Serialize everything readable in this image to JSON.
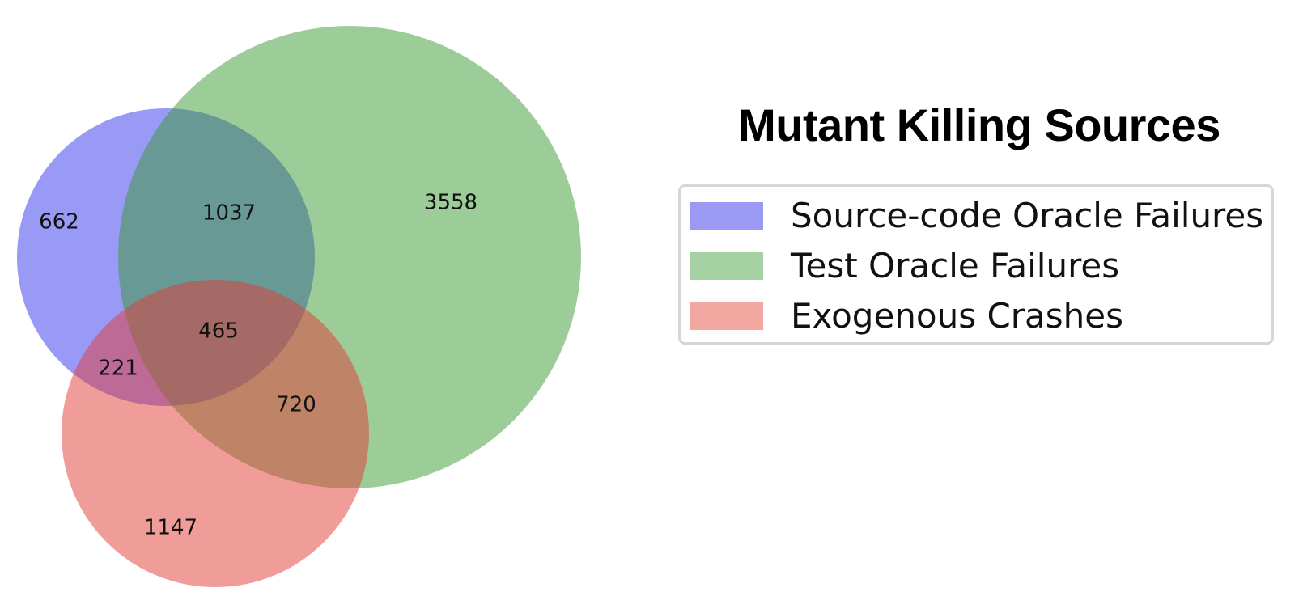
{
  "title": "Mutant Killing Sources",
  "legend": {
    "items": [
      {
        "label": "Source-code Oracle Failures",
        "color": "#9a9af4"
      },
      {
        "label": "Test Oracle Failures",
        "color": "#a6d1a3"
      },
      {
        "label": "Exogenous Crashes",
        "color": "#f2a8a1"
      }
    ]
  },
  "chart_data": {
    "type": "venn3",
    "title": "Mutant Killing Sources",
    "sets": [
      "Source-code Oracle Failures",
      "Test Oracle Failures",
      "Exogenous Crashes"
    ],
    "colors": {
      "Source-code Oracle Failures": "#3333ee",
      "Test Oracle Failures": "#3a9a32",
      "Exogenous Crashes": "#e23b35"
    },
    "regions": [
      {
        "sets": [
          "Source-code Oracle Failures"
        ],
        "value": 662,
        "label": "662"
      },
      {
        "sets": [
          "Test Oracle Failures"
        ],
        "value": 3558,
        "label": "3558"
      },
      {
        "sets": [
          "Exogenous Crashes"
        ],
        "value": 1147,
        "label": "1147"
      },
      {
        "sets": [
          "Source-code Oracle Failures",
          "Test Oracle Failures"
        ],
        "value": 1037,
        "label": "1037"
      },
      {
        "sets": [
          "Source-code Oracle Failures",
          "Exogenous Crashes"
        ],
        "value": 221,
        "label": "221"
      },
      {
        "sets": [
          "Test Oracle Failures",
          "Exogenous Crashes"
        ],
        "value": 720,
        "label": "720"
      },
      {
        "sets": [
          "Source-code Oracle Failures",
          "Test Oracle Failures",
          "Exogenous Crashes"
        ],
        "value": 465,
        "label": "465"
      }
    ],
    "legend_position": "right"
  }
}
